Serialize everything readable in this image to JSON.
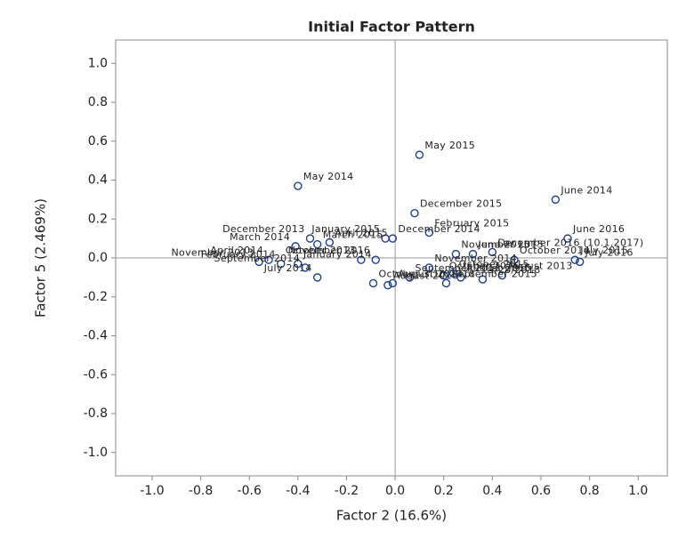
{
  "chart_data": {
    "type": "scatter",
    "title": "Initial Factor Pattern",
    "x_label": "Factor 2 (16.6%)",
    "y_label": "Factor 5 (2.469%)",
    "xlim": [
      -1.15,
      1.12
    ],
    "ylim": [
      -1.12,
      1.12
    ],
    "xticks": [
      {
        "value": -1.0,
        "label": "-1.0"
      },
      -0.8,
      -0.6,
      -0.4,
      -0.2,
      {
        "value": 0.0,
        "label": "0.0"
      },
      0.2,
      0.4,
      0.6,
      0.8,
      {
        "value": 1.0,
        "label": "1.0"
      }
    ],
    "yticks": [
      {
        "value": -1.0,
        "label": "-1.0"
      },
      -0.8,
      -0.6,
      -0.4,
      -0.2,
      {
        "value": 0.0,
        "label": "0.0"
      },
      0.2,
      0.4,
      0.6,
      0.8,
      {
        "value": 1.0,
        "label": "1.0"
      }
    ],
    "color": "#1f3f8f",
    "reference_lines": true,
    "labels": [
      "May 2015",
      "May 2014",
      "June 2014",
      "December 2015",
      "February 2015",
      "June 2016",
      "January 2015",
      "December 2014",
      "December 2013",
      "March 2014",
      "April 2015",
      "March 2015",
      "November 2015",
      "June 2015",
      "December 2016 (10.1.2017)",
      "July 2015",
      "July 2016",
      "October 2014",
      "April 2014",
      "November 2013",
      "February 2014",
      "November 2016",
      "October 2013",
      "January 2014",
      "July 2014",
      "September 2014",
      "September 2013",
      "November 2014",
      "October 2016",
      "August 2013",
      "9/28/2018",
      "September 2015",
      "August 2015",
      "October 3.10.2018",
      "August 2016",
      "August 2014",
      "October 2015"
    ],
    "x": [
      0.1,
      -0.4,
      0.66,
      0.08,
      0.14,
      0.71,
      -0.04,
      -0.01,
      -0.35,
      -0.41,
      -0.27,
      -0.32,
      0.25,
      0.32,
      0.4,
      0.74,
      0.76,
      0.49,
      -0.52,
      -0.56,
      -0.47,
      -0.08,
      -0.14,
      -0.4,
      -0.32,
      -0.37,
      0.06,
      0.14,
      0.2,
      0.44,
      0.36,
      0.21,
      0.27,
      -0.09,
      -0.03,
      -0.01,
      0.24
    ],
    "values": [
      0.53,
      0.37,
      0.3,
      0.23,
      0.13,
      0.1,
      0.1,
      0.1,
      0.1,
      0.06,
      0.08,
      0.07,
      0.02,
      0.02,
      0.03,
      -0.01,
      -0.02,
      -0.01,
      -0.01,
      -0.02,
      -0.03,
      -0.01,
      -0.01,
      -0.03,
      -0.1,
      -0.05,
      -0.1,
      -0.05,
      -0.09,
      -0.09,
      -0.11,
      -0.13,
      -0.1,
      -0.13,
      -0.14,
      -0.13,
      -0.08
    ]
  }
}
